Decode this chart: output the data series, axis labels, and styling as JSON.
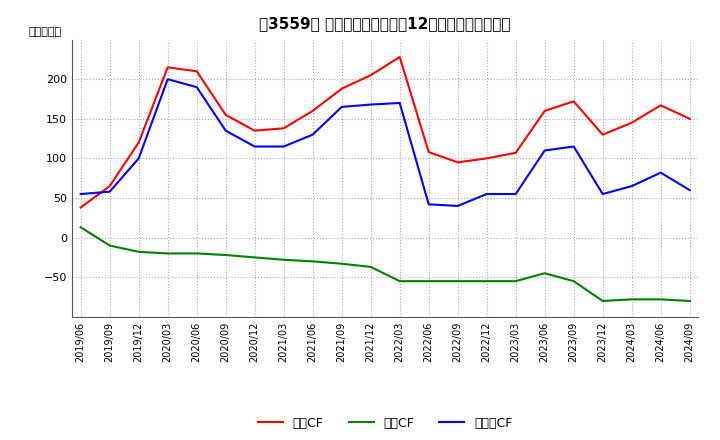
{
  "title": "【3559】 キャッシュフローの12か月移動合計の推移",
  "ylabel": "（百万円）",
  "x_labels": [
    "2019/06",
    "2019/09",
    "2019/12",
    "2020/03",
    "2020/06",
    "2020/09",
    "2020/12",
    "2021/03",
    "2021/06",
    "2021/09",
    "2021/12",
    "2022/03",
    "2022/06",
    "2022/09",
    "2022/12",
    "2023/03",
    "2023/06",
    "2023/09",
    "2023/12",
    "2024/03",
    "2024/06",
    "2024/09"
  ],
  "operating_cf": [
    38,
    65,
    120,
    215,
    210,
    155,
    135,
    138,
    160,
    188,
    205,
    228,
    108,
    95,
    100,
    107,
    160,
    172,
    130,
    145,
    167,
    150
  ],
  "investing_cf": [
    13,
    -10,
    -18,
    -20,
    -20,
    -22,
    -25,
    -28,
    -30,
    -33,
    -37,
    -55,
    -55,
    -55,
    -55,
    -55,
    -45,
    -55,
    -80,
    -78,
    -78,
    -80
  ],
  "free_cf": [
    55,
    58,
    100,
    200,
    190,
    135,
    115,
    115,
    130,
    165,
    168,
    170,
    42,
    40,
    55,
    55,
    110,
    115,
    55,
    65,
    82,
    60
  ],
  "operating_color": "#ff0000",
  "investing_color": "#008000",
  "free_cf_color": "#0000ff",
  "ylim": [
    -100,
    250
  ],
  "yticks": [
    -50,
    0,
    50,
    100,
    150,
    200
  ],
  "background_color": "#ffffff",
  "grid_color": "#aaaaaa",
  "legend_labels": [
    "営業CF",
    "投資CF",
    "フリーCF"
  ]
}
